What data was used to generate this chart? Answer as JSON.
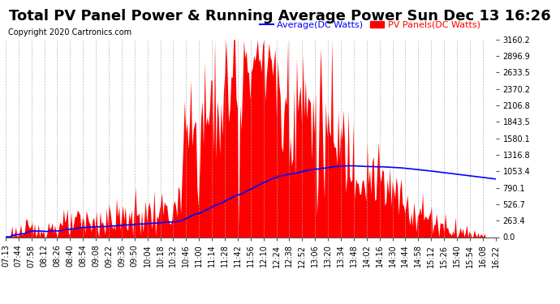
{
  "title": "Total PV Panel Power & Running Average Power Sun Dec 13 16:26",
  "copyright": "Copyright 2020 Cartronics.com",
  "legend_avg": "Average(DC Watts)",
  "legend_pv": "PV Panels(DC Watts)",
  "avg_color": "blue",
  "pv_color": "red",
  "background_color": "#ffffff",
  "grid_color": "#aaaaaa",
  "ylim": [
    0,
    3160.2
  ],
  "yticks": [
    0.0,
    263.4,
    526.7,
    790.1,
    1053.4,
    1316.8,
    1580.1,
    1843.5,
    2106.8,
    2370.2,
    2633.5,
    2896.9,
    3160.2
  ],
  "ytick_labels": [
    "0.0",
    "263.4",
    "526.7",
    "790.1",
    "1053.4",
    "1316.8",
    "1580.1",
    "1843.5",
    "2106.8",
    "2370.2",
    "2633.5",
    "2896.9",
    "3160.2"
  ],
  "xtick_labels": [
    "07:13",
    "07:44",
    "07:58",
    "08:12",
    "08:26",
    "08:40",
    "08:54",
    "09:08",
    "09:22",
    "09:36",
    "09:50",
    "10:04",
    "10:18",
    "10:32",
    "10:46",
    "11:00",
    "11:14",
    "11:28",
    "11:42",
    "11:56",
    "12:10",
    "12:24",
    "12:38",
    "12:52",
    "13:06",
    "13:20",
    "13:34",
    "13:48",
    "14:02",
    "14:16",
    "14:30",
    "14:44",
    "14:58",
    "15:12",
    "15:26",
    "15:40",
    "15:54",
    "16:08",
    "16:22"
  ],
  "title_fontsize": 13,
  "copyright_fontsize": 7,
  "tick_fontsize": 7,
  "legend_fontsize": 8
}
